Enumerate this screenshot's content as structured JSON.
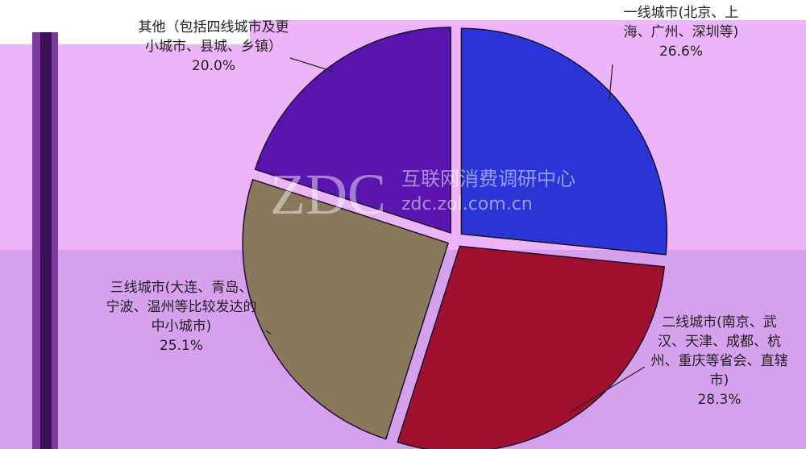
{
  "chart_data": {
    "type": "pie",
    "categories": [
      "一线城市(北京、上海、广州、深圳等)",
      "二线城市(南京、武汉、天津、成都、杭州、重庆等省会、直辖市)",
      "三线城市(大连、青岛、宁波、温州等比较发达的中小城市)",
      "其他（包括四线城市及更小城市、县城、乡镇）"
    ],
    "values": [
      26.6,
      28.3,
      25.1,
      20.0
    ],
    "value_labels": [
      "26.6%",
      "28.3%",
      "25.1%",
      "20.0%"
    ],
    "colors": [
      "#2b35d6",
      "#a2102f",
      "#8a785c",
      "#5a14b0"
    ],
    "annotations": [
      "ZDC",
      "互联网消费调研中心",
      "zdc.zol.com.cn"
    ]
  }
}
